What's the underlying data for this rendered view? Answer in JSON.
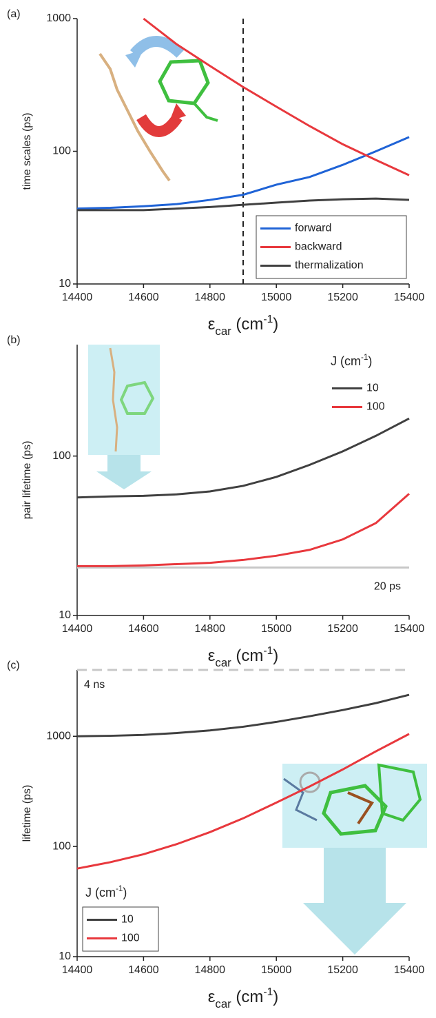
{
  "chart_data": [
    {
      "type": "line",
      "panel_label": "(a)",
      "ylabel": "time scales (ps)",
      "xlabel": [
        "ε",
        "car",
        " (cm",
        "-1",
        ")"
      ],
      "x": [
        14400,
        14500,
        14600,
        14700,
        14800,
        14900,
        15000,
        15100,
        15200,
        15300,
        15400
      ],
      "series": [
        {
          "name": "forward",
          "color": "#1f63d6",
          "values": [
            37,
            37.5,
            38.5,
            40,
            43,
            47,
            56,
            64,
            79,
            100,
            128
          ]
        },
        {
          "name": "backward",
          "color": "#e8383d",
          "values": [
            null,
            null,
            1000,
            640,
            440,
            305,
            217,
            155,
            113,
            86,
            66
          ]
        },
        {
          "name": "thermalization",
          "color": "#404040",
          "values": [
            36,
            36,
            36,
            37,
            38,
            39.5,
            41,
            42.5,
            43.5,
            44,
            43
          ]
        }
      ],
      "xlim": [
        14400,
        15400
      ],
      "xticks": [
        14400,
        14600,
        14800,
        15000,
        15200,
        15400
      ],
      "ylim": [
        10,
        1000
      ],
      "yticks": [
        10,
        100,
        1000
      ],
      "log_y": true,
      "vline": 14900,
      "legend": "lower right",
      "legend_frame": true
    },
    {
      "type": "line",
      "panel_label": "(b)",
      "ylabel": "pair lifetime (ps)",
      "xlabel": [
        "ε",
        "car",
        " (cm",
        "-1",
        ")"
      ],
      "x": [
        14400,
        14500,
        14600,
        14700,
        14800,
        14900,
        15000,
        15100,
        15200,
        15300,
        15400
      ],
      "series": [
        {
          "name": "10",
          "color": "#404040",
          "values": [
            55,
            55.8,
            56.3,
            57.5,
            60,
            65,
            74,
            88,
            107,
            134,
            172
          ]
        },
        {
          "name": "100",
          "color": "#e8383d",
          "values": [
            20.4,
            20.4,
            20.6,
            21,
            21.4,
            22.3,
            23.7,
            25.8,
            30,
            38,
            58
          ]
        }
      ],
      "xlim": [
        14400,
        15400
      ],
      "xticks": [
        14400,
        14600,
        14800,
        15000,
        15200,
        15400
      ],
      "ylim": [
        10,
        500
      ],
      "yticks": [
        10,
        100
      ],
      "log_y": true,
      "hline": 20,
      "hline_label": "20 ps",
      "hline_dashed": false,
      "legend": "upper right",
      "legend_title": [
        "J (cm",
        "-1",
        ")"
      ],
      "legend_frame": false
    },
    {
      "type": "line",
      "panel_label": "(c)",
      "ylabel": "lifetime (ps)",
      "xlabel": [
        "ε",
        "car",
        " (cm",
        "-1",
        ")"
      ],
      "x": [
        14400,
        14500,
        14600,
        14700,
        14800,
        14900,
        15000,
        15100,
        15200,
        15300,
        15400
      ],
      "series": [
        {
          "name": "10",
          "color": "#404040",
          "values": [
            1000,
            1010,
            1030,
            1070,
            1130,
            1220,
            1350,
            1520,
            1730,
            2000,
            2380
          ]
        },
        {
          "name": "100",
          "color": "#e8383d",
          "values": [
            63,
            72,
            85,
            105,
            135,
            180,
            250,
            350,
            500,
            730,
            1050
          ]
        }
      ],
      "xlim": [
        14400,
        15400
      ],
      "xticks": [
        14400,
        14600,
        14800,
        15000,
        15200,
        15400
      ],
      "ylim": [
        10,
        4000
      ],
      "yticks": [
        10,
        100,
        1000
      ],
      "log_y": true,
      "hline": 4000,
      "hline_label": "4 ns",
      "hline_dashed": true,
      "legend": "lower left",
      "legend_title": [
        "J (cm",
        "-1",
        ")"
      ],
      "legend_frame": true
    }
  ]
}
